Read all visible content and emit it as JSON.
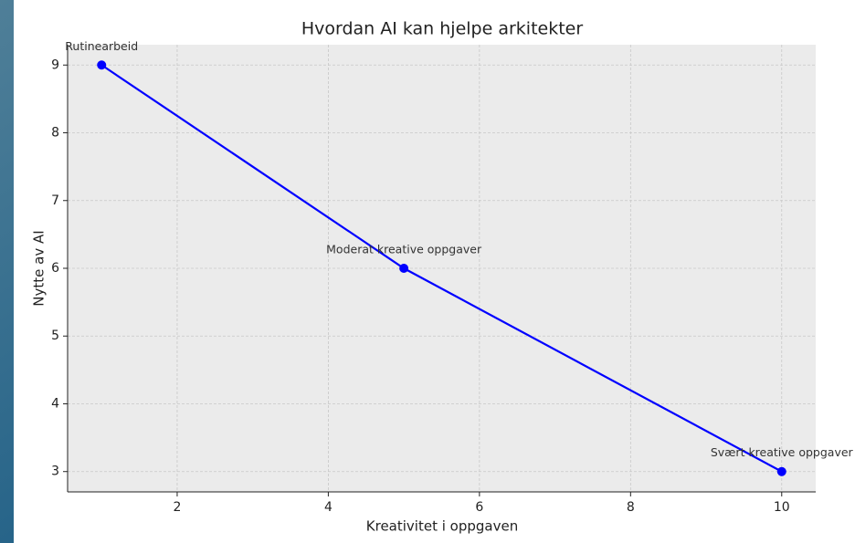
{
  "chart_data": {
    "type": "line",
    "title": "Hvordan AI kan hjelpe arkitekter",
    "xlabel": "Kreativitet i oppgaven",
    "ylabel": "Nytte av AI",
    "x": [
      1,
      5,
      10
    ],
    "series": [
      {
        "color": "#0000ff",
        "values": [
          9,
          6,
          3
        ]
      }
    ],
    "point_labels": [
      "Rutinearbeid",
      "Moderat kreative oppgaver",
      "Svært kreative oppgaver"
    ],
    "xlim": [
      0.55,
      10.45
    ],
    "xticks": [
      2,
      4,
      6,
      8,
      10
    ],
    "ylim": [
      2.7,
      9.3
    ],
    "yticks": [
      3,
      4,
      5,
      6,
      7,
      8,
      9
    ],
    "grid": true
  }
}
